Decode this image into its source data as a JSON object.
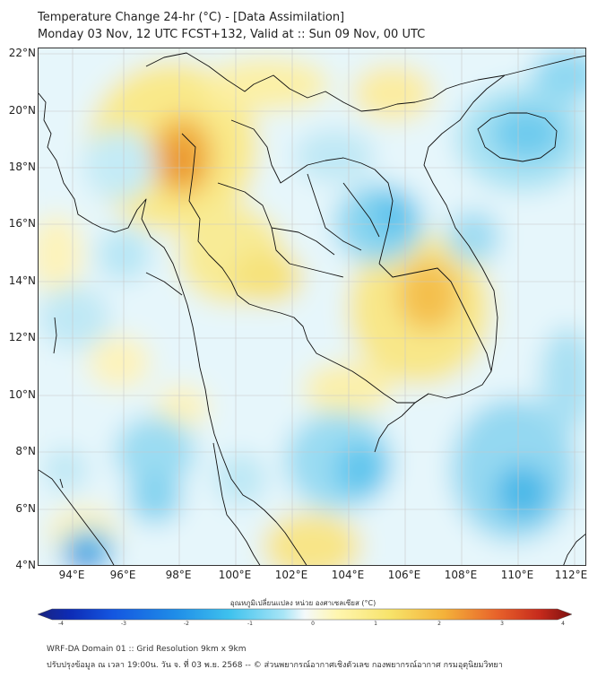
{
  "header": {
    "title_line1": "Temperature Change 24-hr (°C) - [Data Assimilation]",
    "title_line2": "Monday 03 Nov, 12 UTC FCST+132, Valid at :: Sun 09 Nov, 00 UTC"
  },
  "map": {
    "y_axis_labels": [
      "22°N",
      "20°N",
      "18°N",
      "16°N",
      "14°N",
      "12°N",
      "10°N",
      "8°N",
      "6°N",
      "4°N"
    ],
    "x_axis_labels": [
      "94°E",
      "96°E",
      "98°E",
      "100°E",
      "102°E",
      "104°E",
      "106°E",
      "108°E",
      "110°E",
      "112°E"
    ],
    "colors": {
      "warm_light": "#fff6b0",
      "warm_yellow": "#f7e36a",
      "warm_orange": "#f4b23a",
      "warm_deep": "#e7852a",
      "cool_light": "#d6f0f8",
      "cool_cyan": "#8fdcf2",
      "cool_blue": "#3db6e6",
      "cool_deep": "#2a7fd6",
      "coastline": "#111111",
      "gridline": "#c8c8c8"
    }
  },
  "colorbar": {
    "label": "อุณหภูมิเปลี่ยนแปลง หน่วย องศาเซลเซียส (°C)",
    "ticks": [
      "-4",
      "-3",
      "-2",
      "-1",
      "0",
      "1",
      "2",
      "3",
      "4"
    ],
    "min_color": "#1a237e",
    "max_color": "#7b1010"
  },
  "footer": {
    "line1": "WRF-DA Domain 01 :: Grid Resolution 9km x 9km",
    "line2": "ปรับปรุงข้อมูล ณ เวลา 19:00น. วัน จ. ที่ 03 พ.ย. 2568 -- © ส่วนพยากรณ์อากาศเชิงตัวเลข กองพยากรณ์อากาศ กรมอุตุนิยมวิทยา"
  }
}
